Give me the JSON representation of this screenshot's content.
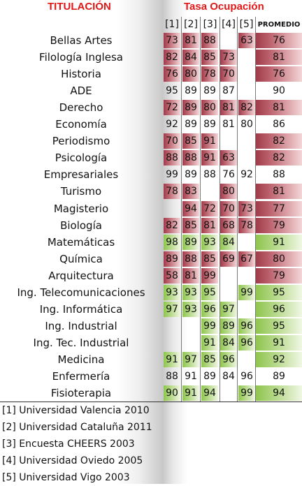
{
  "header": {
    "titulacion": "TITULACIÓN",
    "tasa": "Tasa Ocupación"
  },
  "columns": [
    "[1]",
    "[2]",
    "[3]",
    "[4]",
    "[5]",
    "PROMEDIO"
  ],
  "rows": [
    {
      "name": "Bellas Artes",
      "values": [
        "73",
        "81",
        "88",
        "",
        "63"
      ],
      "promedio": "76",
      "color": "red"
    },
    {
      "name": "Filología Inglesa",
      "values": [
        "82",
        "84",
        "85",
        "73",
        ""
      ],
      "promedio": "81",
      "color": "red"
    },
    {
      "name": "Historia",
      "values": [
        "76",
        "80",
        "78",
        "70",
        ""
      ],
      "promedio": "76",
      "color": "red"
    },
    {
      "name": "ADE",
      "values": [
        "95",
        "89",
        "89",
        "87",
        ""
      ],
      "promedio": "90",
      "color": "none"
    },
    {
      "name": "Derecho",
      "values": [
        "72",
        "89",
        "80",
        "81",
        "82"
      ],
      "promedio": "81",
      "color": "red"
    },
    {
      "name": "Economía",
      "values": [
        "92",
        "89",
        "89",
        "81",
        "80"
      ],
      "promedio": "86",
      "color": "none"
    },
    {
      "name": "Periodismo",
      "values": [
        "70",
        "85",
        "91",
        "",
        ""
      ],
      "promedio": "82",
      "color": "red"
    },
    {
      "name": "Psicología",
      "values": [
        "88",
        "88",
        "91",
        "63",
        ""
      ],
      "promedio": "82",
      "color": "red"
    },
    {
      "name": "Empresariales",
      "values": [
        "99",
        "89",
        "88",
        "76",
        "92"
      ],
      "promedio": "88",
      "color": "none"
    },
    {
      "name": "Turismo",
      "values": [
        "78",
        "83",
        "",
        "80",
        ""
      ],
      "promedio": "81",
      "color": "red"
    },
    {
      "name": "Magisterio",
      "values": [
        "",
        "94",
        "72",
        "70",
        "73"
      ],
      "promedio": "77",
      "color": "red"
    },
    {
      "name": "Biología",
      "values": [
        "82",
        "85",
        "81",
        "68",
        "78"
      ],
      "promedio": "79",
      "color": "red"
    },
    {
      "name": "Matemáticas",
      "values": [
        "98",
        "89",
        "93",
        "84",
        ""
      ],
      "promedio": "91",
      "color": "green"
    },
    {
      "name": "Química",
      "values": [
        "89",
        "88",
        "85",
        "69",
        "67"
      ],
      "promedio": "80",
      "color": "red"
    },
    {
      "name": "Arquitectura",
      "values": [
        "58",
        "81",
        "99",
        "",
        ""
      ],
      "promedio": "79",
      "color": "red"
    },
    {
      "name": "Ing. Telecomunicaciones",
      "values": [
        "93",
        "93",
        "95",
        "",
        "99"
      ],
      "promedio": "95",
      "color": "green"
    },
    {
      "name": "Ing. Informática",
      "values": [
        "97",
        "93",
        "96",
        "97",
        ""
      ],
      "promedio": "96",
      "color": "green"
    },
    {
      "name": "Ing. Industrial",
      "values": [
        "",
        "",
        "99",
        "89",
        "96"
      ],
      "promedio": "95",
      "color": "green"
    },
    {
      "name": "Ing. Tec. Industrial",
      "values": [
        "",
        "",
        "91",
        "84",
        "96"
      ],
      "promedio": "91",
      "color": "green"
    },
    {
      "name": "Medicina",
      "values": [
        "91",
        "97",
        "85",
        "96",
        ""
      ],
      "promedio": "92",
      "color": "green"
    },
    {
      "name": "Enfermería",
      "values": [
        "88",
        "91",
        "89",
        "84",
        "96"
      ],
      "promedio": "89",
      "color": "none"
    },
    {
      "name": "Fisioterapia",
      "values": [
        "90",
        "91",
        "94",
        "",
        "99"
      ],
      "promedio": "94",
      "color": "green"
    }
  ],
  "notes": [
    "[1] Universidad Valencia 2010",
    "[2] Universidad Cataluña 2011",
    "[3] Encuesta CHEERS 2003",
    "[4] Universidad Oviedo 2005",
    "[5] Universidad Vigo  2003"
  ],
  "colors": {
    "title": "#e01818",
    "red_cell": "#a03a4a",
    "green_cell": "#8fc54e"
  }
}
